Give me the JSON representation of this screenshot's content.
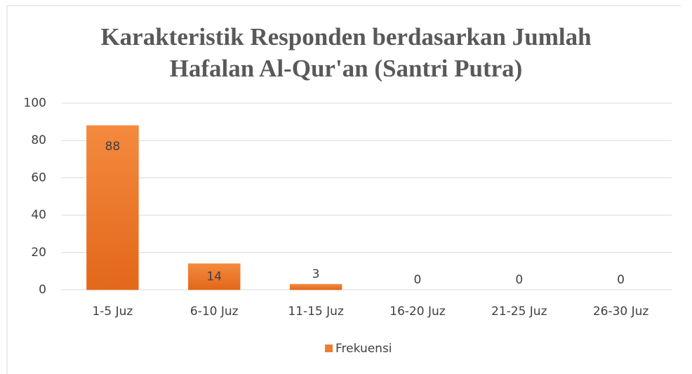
{
  "chart_data": {
    "type": "bar",
    "title": "Karakteristik Responden berdasarkan Jumlah Hafalan Al-Qur'an (Santri Putra)",
    "categories": [
      "1-5 Juz",
      "6-10 Juz",
      "11-15 Juz",
      "16-20 Juz",
      "21-25 Juz",
      "26-30 Juz"
    ],
    "series": [
      {
        "name": "Frekuensi",
        "color": "#ed7d31",
        "values": [
          88,
          14,
          3,
          0,
          0,
          0
        ]
      }
    ],
    "ylim": [
      0,
      100
    ],
    "yticks": [
      0,
      20,
      40,
      60,
      80,
      100
    ],
    "grid": true,
    "legend": "bottom"
  }
}
